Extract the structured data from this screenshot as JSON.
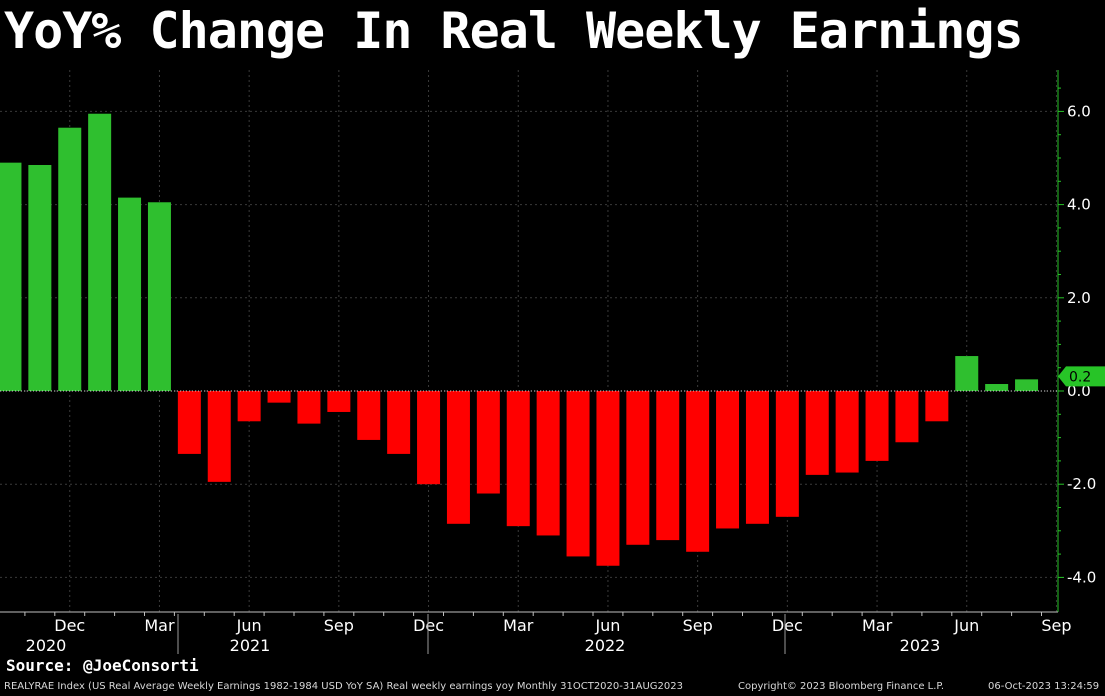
{
  "title": "YoY% Change In Real Weekly Earnings",
  "source": "Source: @JoeConsorti",
  "footer": {
    "index_desc": "REALYRAE Index (US Real Average Weekly Earnings 1982-1984 USD YoY SA) Real weekly earnings yoy  Monthly 31OCT2020-31AUG2023",
    "copyright": "Copyright© 2023 Bloomberg Finance L.P.",
    "timestamp": "06-Oct-2023 13:24:59"
  },
  "colors": {
    "positive": "#2fbf2f",
    "negative": "#ff0000",
    "axis": "#27c427",
    "grid": "#3a3a3a"
  },
  "chart_data": {
    "type": "bar",
    "y_axis_side": "right",
    "ylim": [
      -4.6,
      6.8
    ],
    "y_ticks": [
      "6.0",
      "4.0",
      "2.0",
      "0.0",
      "-2.0",
      "-4.0"
    ],
    "y_tick_values": [
      6,
      4,
      2,
      0,
      -2,
      -4
    ],
    "last_value_label": "0.2",
    "x_month_labels": [
      "Dec",
      "Mar",
      "Jun",
      "Sep",
      "Dec",
      "Mar",
      "Jun",
      "Sep",
      "Dec",
      "Mar",
      "Jun",
      "Sep"
    ],
    "x_year_labels": [
      "2020",
      "2021",
      "2022",
      "2023"
    ],
    "categories": [
      "Oct 2020",
      "Nov 2020",
      "Dec 2020",
      "Jan 2021",
      "Feb 2021",
      "Mar 2021",
      "Apr 2021",
      "May 2021",
      "Jun 2021",
      "Jul 2021",
      "Aug 2021",
      "Sep 2021",
      "Oct 2021",
      "Nov 2021",
      "Dec 2021",
      "Jan 2022",
      "Feb 2022",
      "Mar 2022",
      "Apr 2022",
      "May 2022",
      "Jun 2022",
      "Jul 2022",
      "Aug 2022",
      "Sep 2022",
      "Oct 2022",
      "Nov 2022",
      "Dec 2022",
      "Jan 2023",
      "Feb 2023",
      "Mar 2023",
      "Apr 2023",
      "May 2023",
      "Jun 2023",
      "Jul 2023",
      "Aug 2023"
    ],
    "values": [
      4.9,
      4.85,
      5.65,
      5.95,
      4.15,
      4.05,
      -1.35,
      -1.95,
      -0.65,
      -0.25,
      -0.7,
      -0.45,
      -1.05,
      -1.35,
      -2.0,
      -2.85,
      -2.2,
      -2.9,
      -3.1,
      -3.55,
      -3.75,
      -3.3,
      -3.2,
      -3.45,
      -2.95,
      -2.85,
      -2.7,
      -1.8,
      -1.75,
      -1.5,
      -1.1,
      -0.65,
      0.75,
      0.15,
      0.25
    ]
  }
}
